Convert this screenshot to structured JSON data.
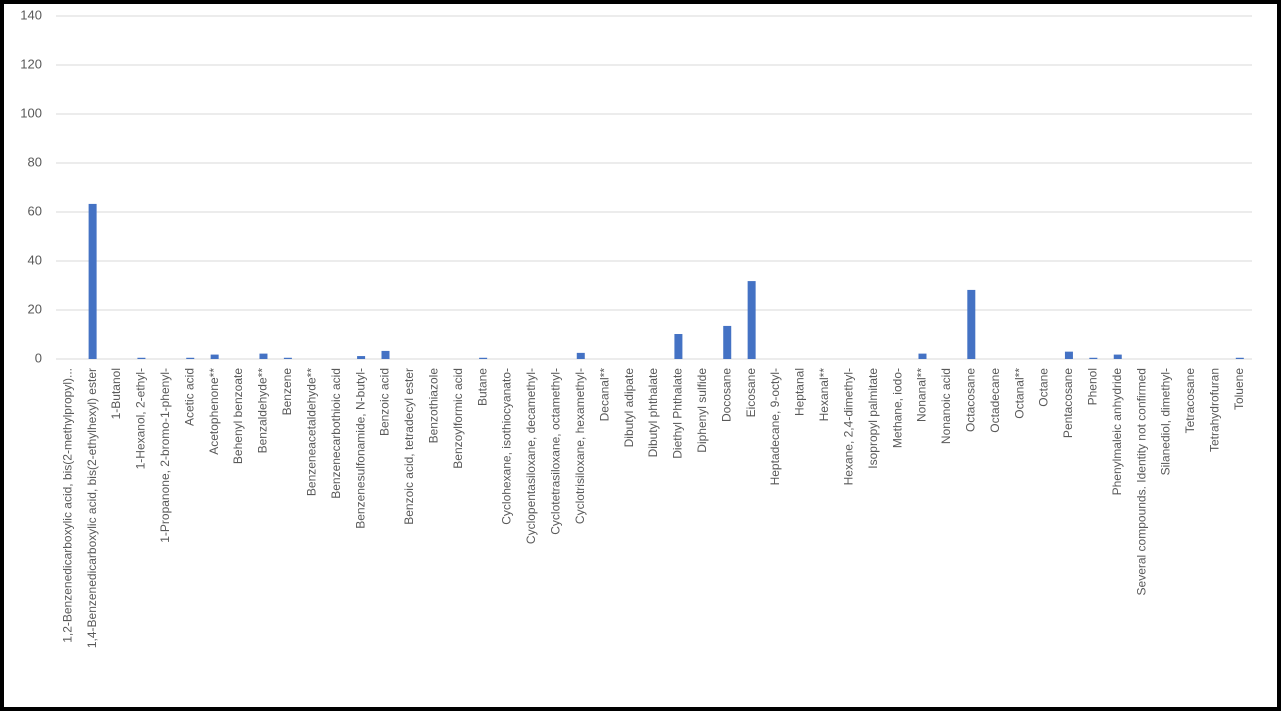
{
  "chart_data": {
    "type": "bar",
    "categories": [
      "1,2-Benzenedicarboxylic acid, bis(2-methylpropyl)...",
      "1,4-Benzenedicarboxylic acid, bis(2-ethylhexyl) ester",
      "1-Butanol",
      "1-Hexanol, 2-ethyl-",
      "1-Propanone, 2-bromo-1-phenyl-",
      "Acetic acid",
      "Acetophenone**",
      "Behenyl benzoate",
      "Benzaldehyde**",
      "Benzene",
      "Benzeneacetaldehyde**",
      "Benzenecarbothioic acid",
      "Benzenesulfonamide, N-butyl-",
      "Benzoic acid",
      "Benzoic acid, tetradecyl ester",
      "Benzothiazole",
      "Benzoylformic acid",
      "Butane",
      "Cyclohexane, isothiocyanato-",
      "Cyclopentasiloxane, decamethyl-",
      "Cyclotetrasiloxane, octamethyl-",
      "Cyclotrisiloxane, hexamethyl-",
      "Decanal**",
      "Dibutyl adipate",
      "Dibutyl phthalate",
      "Diethyl Phthalate",
      "Diphenyl sulfide",
      "Docosane",
      "Eicosane",
      "Heptadecane, 9-octyl-",
      "Heptanal",
      "Hexanal**",
      "Hexane, 2,4-dimethyl-",
      "Isopropyl palmitate",
      "Methane, iodo-",
      "Nonanal**",
      "Nonanoic acid",
      "Octacosane",
      "Octadecane",
      "Octanal**",
      "Octane",
      "Pentacosane",
      "Phenol",
      "Phenylmaleic anhydride",
      "Several compounds. Identity not confirmed",
      "Silanediol, dimethyl-",
      "Tetracosane",
      "Tetrahydrofuran",
      "Toluene"
    ],
    "values": [
      0,
      63.3,
      0,
      0.5,
      0,
      0.5,
      1.8,
      0,
      2.2,
      0.5,
      0,
      0,
      1.2,
      3.3,
      0,
      0,
      0,
      0.5,
      0,
      0,
      0,
      2.5,
      0,
      0,
      0,
      10.2,
      0,
      13.5,
      31.8,
      0,
      0,
      0,
      0,
      0,
      0,
      2.2,
      0,
      28.2,
      0,
      0,
      0,
      3,
      0.5,
      1.8,
      0,
      0,
      0,
      0,
      0.5
    ],
    "color": "#4472c4",
    "ylim": [
      0,
      140
    ],
    "yticks": [
      0,
      20,
      40,
      60,
      80,
      100,
      120,
      140
    ],
    "grid": true
  }
}
